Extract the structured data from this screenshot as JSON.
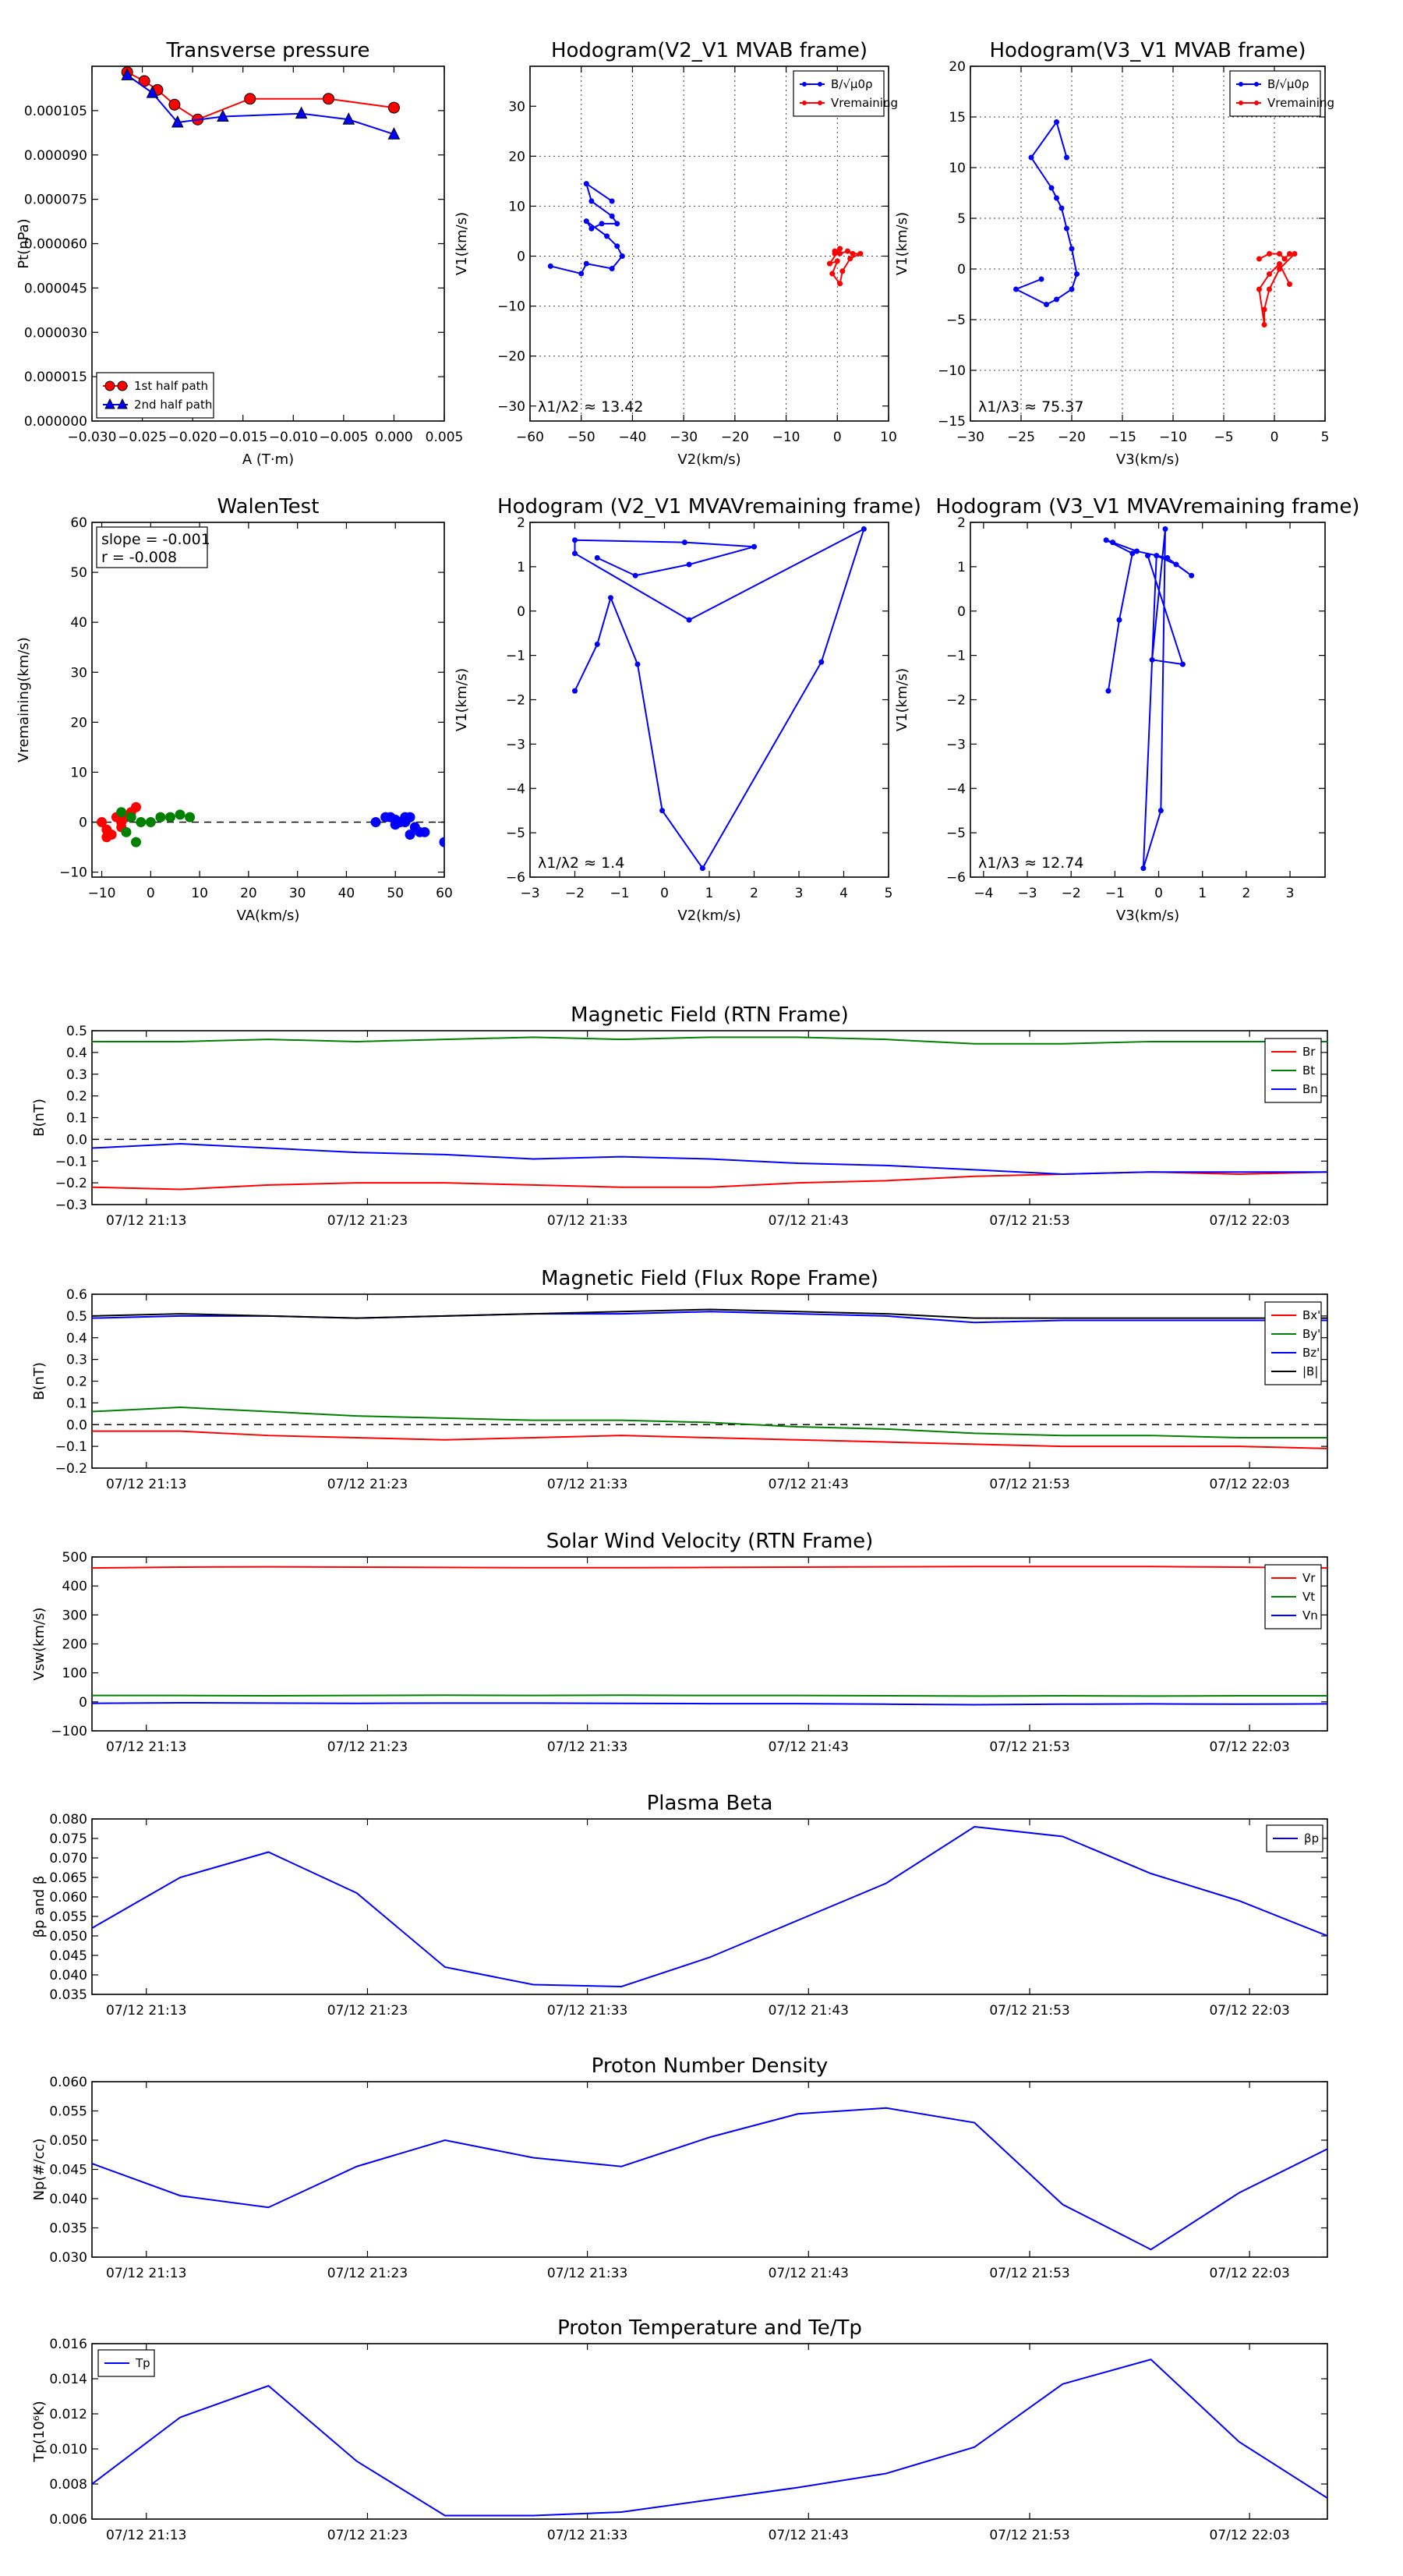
{
  "colors": {
    "red": "#ff0000",
    "green": "#008000",
    "blue": "#0000ff",
    "black": "#000000"
  },
  "chart_data": [
    {
      "id": "transverse_pressure",
      "type": "line",
      "title": "Transverse pressure",
      "xlabel": "A (T·m)",
      "ylabel": "Pt(nPa)",
      "xlim": [
        -0.03,
        0.005
      ],
      "ylim": [
        0,
        0.00012
      ],
      "xticks": [
        "−0.030",
        "−0.025",
        "−0.020",
        "−0.015",
        "−0.010",
        "−0.005",
        "0.000",
        "0.005"
      ],
      "yticks": [
        "0.000000",
        "0.000015",
        "0.000030",
        "0.000045",
        "0.000060",
        "0.000075",
        "0.000090",
        "0.000105"
      ],
      "legend_position": "lower-left",
      "series": [
        {
          "name": "1st half path",
          "color": "#ff0000",
          "marker": "circle",
          "x": [
            -0.0265,
            -0.0248,
            -0.0235,
            -0.0218,
            -0.0195,
            -0.0143,
            -0.0065,
            0.0
          ],
          "y": [
            0.000118,
            0.000115,
            0.000112,
            0.000107,
            0.000102,
            0.000109,
            0.000109,
            0.000106
          ]
        },
        {
          "name": "2nd half path",
          "color": "#0000ff",
          "marker": "triangle",
          "x": [
            -0.0265,
            -0.024,
            -0.0215,
            -0.017,
            -0.0092,
            -0.0045,
            0.0
          ],
          "y": [
            0.000117,
            0.000111,
            0.000101,
            0.000103,
            0.000104,
            0.000102,
            9.7e-05
          ]
        }
      ]
    },
    {
      "id": "hodogram_v2_v1_mvab",
      "type": "line",
      "title": "Hodogram(V2_V1 MVAB frame)",
      "xlabel": "V2(km/s)",
      "ylabel": "V1(km/s)",
      "xlim": [
        -60,
        10
      ],
      "ylim": [
        -33,
        38
      ],
      "grid": true,
      "xticks": [
        "−60",
        "−50",
        "−40",
        "−30",
        "−20",
        "−10",
        "0",
        "10"
      ],
      "yticks": [
        "−30",
        "−20",
        "−10",
        "0",
        "10",
        "20",
        "30"
      ],
      "legend_position": "top-right",
      "annotation": "λ1/λ2 ≈ 13.42",
      "series": [
        {
          "name": "B/√μ0ρ",
          "color": "#0000ff",
          "marker": "dot",
          "x": [
            -44,
            -49,
            -48,
            -44,
            -43,
            -46,
            -48,
            -49,
            -45,
            -43,
            -42,
            -44,
            -49,
            -50,
            -56
          ],
          "y": [
            11,
            14.5,
            11,
            8,
            6.5,
            6.5,
            5.5,
            7,
            4,
            2,
            0,
            -2.5,
            -1.5,
            -3.5,
            -2
          ]
        },
        {
          "name": "Vremaining",
          "color": "#ff0000",
          "marker": "dot",
          "x": [
            -0.5,
            0.5,
            2,
            3,
            4.5,
            2.5,
            1,
            0.5,
            -1,
            0,
            -1.5,
            0.5,
            -0.5
          ],
          "y": [
            1,
            0.5,
            1,
            0.5,
            0.5,
            -0.5,
            -3,
            -5.5,
            -3.5,
            -1,
            -1.5,
            1.5,
            0.5
          ]
        }
      ]
    },
    {
      "id": "hodogram_v3_v1_mvab",
      "type": "line",
      "title": "Hodogram(V3_V1 MVAB frame)",
      "xlabel": "V3(km/s)",
      "ylabel": "V1(km/s)",
      "xlim": [
        -30,
        5
      ],
      "ylim": [
        -15,
        20
      ],
      "grid": true,
      "xticks": [
        "−30",
        "−25",
        "−20",
        "−15",
        "−10",
        "−5",
        "0",
        "5"
      ],
      "yticks": [
        "−15",
        "−10",
        "−5",
        "0",
        "5",
        "10",
        "15",
        "20"
      ],
      "legend_position": "top-right",
      "annotation": "λ1/λ3 ≈ 75.37",
      "series": [
        {
          "name": "B/√μ0ρ",
          "color": "#0000ff",
          "marker": "dot",
          "x": [
            -20.5,
            -21.5,
            -24,
            -22,
            -21.5,
            -21,
            -20.5,
            -20,
            -19.5,
            -20,
            -21.5,
            -22.5,
            -25.5,
            -23
          ],
          "y": [
            11,
            14.5,
            11,
            8,
            7,
            6,
            4,
            2,
            -0.5,
            -2,
            -3,
            -3.5,
            -2,
            -1
          ]
        },
        {
          "name": "Vremaining",
          "color": "#ff0000",
          "marker": "dot",
          "x": [
            -1.5,
            -0.5,
            0.5,
            1,
            1.5,
            2,
            0.5,
            -0.5,
            -1,
            -1,
            -1.5,
            -0.5,
            0.5,
            1.5
          ],
          "y": [
            1,
            1.5,
            1.5,
            1,
            1.5,
            1.5,
            0,
            -2,
            -4,
            -5.5,
            -2,
            -0.5,
            0.5,
            -1.5
          ]
        }
      ]
    },
    {
      "id": "walen_test",
      "type": "scatter",
      "title": "WalenTest",
      "xlabel": "VA(km/s)",
      "ylabel": "Vremaining(km/s)",
      "xlim": [
        -12,
        60
      ],
      "ylim": [
        -11,
        60
      ],
      "xticks": [
        "−10",
        "0",
        "10",
        "20",
        "30",
        "40",
        "50",
        "60"
      ],
      "yticks": [
        "−10",
        "0",
        "10",
        "20",
        "30",
        "40",
        "50",
        "60"
      ],
      "annotation": [
        "slope = -0.001",
        "r = -0.008"
      ],
      "series": [
        {
          "name": "",
          "color": "#ff0000",
          "x": [
            -10,
            -9,
            -8,
            -7,
            -6,
            -5,
            -4,
            -3,
            -6,
            -9
          ],
          "y": [
            0,
            -1.5,
            -2.5,
            1,
            0,
            1,
            2,
            3,
            -1,
            -3
          ]
        },
        {
          "name": "",
          "color": "#008000",
          "x": [
            -6,
            -4,
            -2,
            0,
            2,
            4,
            6,
            8,
            -3,
            -5
          ],
          "y": [
            2,
            1,
            0,
            0,
            1,
            1,
            1.5,
            1,
            -4,
            -2
          ]
        },
        {
          "name": "",
          "color": "#0000ff",
          "x": [
            46,
            48,
            50,
            51,
            52,
            53,
            54,
            55,
            49,
            50,
            52,
            53,
            56,
            60
          ],
          "y": [
            0,
            1,
            0.5,
            0,
            1,
            1,
            -1,
            -2,
            1,
            -0.5,
            0,
            -2.5,
            -2,
            -4
          ]
        }
      ],
      "reference_line": {
        "y": 0,
        "style": "dashed"
      }
    },
    {
      "id": "hodogram_v2_v1_mvav",
      "type": "line",
      "title": "Hodogram (V2_V1 MVAVremaining frame)",
      "xlabel": "V2(km/s)",
      "ylabel": "V1(km/s)",
      "xlim": [
        -3,
        5
      ],
      "ylim": [
        -6,
        2
      ],
      "xticks": [
        "−3",
        "−2",
        "−1",
        "0",
        "1",
        "2",
        "3",
        "4",
        "5"
      ],
      "yticks": [
        "−6",
        "−5",
        "−4",
        "−3",
        "−2",
        "−1",
        "0",
        "1",
        "2"
      ],
      "annotation": "λ1/λ2 ≈ 1.4",
      "series": [
        {
          "name": "",
          "color": "#0000ff",
          "marker": "dot",
          "x": [
            -2,
            -1.5,
            -1.2,
            -0.6,
            -0.05,
            0.85,
            3.5,
            4.45,
            0.55,
            -2,
            -2,
            0.45,
            2,
            0.55,
            -0.65,
            -1.5
          ],
          "y": [
            -1.8,
            -0.75,
            0.3,
            -1.2,
            -4.5,
            -5.8,
            -1.15,
            1.85,
            -0.2,
            1.3,
            1.6,
            1.55,
            1.45,
            1.05,
            0.8,
            1.2
          ]
        }
      ]
    },
    {
      "id": "hodogram_v3_v1_mvav",
      "type": "line",
      "title": "Hodogram (V3_V1 MVAVremaining frame)",
      "xlabel": "V3(km/s)",
      "ylabel": "V1(km/s)",
      "xlim": [
        -4.3,
        3.8
      ],
      "ylim": [
        -6,
        2
      ],
      "xticks": [
        "−4",
        "−3",
        "−2",
        "−1",
        "0",
        "1",
        "2",
        "3"
      ],
      "yticks": [
        "−6",
        "−5",
        "−4",
        "−3",
        "−2",
        "−1",
        "0",
        "1",
        "2"
      ],
      "annotation": "λ1/λ3 ≈ 12.74",
      "series": [
        {
          "name": "",
          "color": "#0000ff",
          "marker": "dot",
          "x": [
            -1.15,
            -0.9,
            -0.6,
            -1.2,
            -1.05,
            -0.5,
            0.2,
            0.75,
            0.4,
            -0.05,
            -0.35,
            0.05,
            0.15,
            -0.15,
            0.55,
            -0.25
          ],
          "y": [
            -1.8,
            -0.2,
            1.3,
            1.6,
            1.55,
            1.35,
            1.2,
            0.8,
            1.05,
            1.25,
            -5.8,
            -4.5,
            1.85,
            -1.1,
            -1.2,
            1.25
          ]
        }
      ]
    },
    {
      "id": "magnetic_field_rtn",
      "type": "line",
      "title": "Magnetic Field (RTN Frame)",
      "ylabel": "B(nT)",
      "ylim": [
        -0.3,
        0.5
      ],
      "yticks": [
        "−0.3",
        "−0.2",
        "−0.1",
        "0.0",
        "0.1",
        "0.2",
        "0.3",
        "0.4",
        "0.5"
      ],
      "x_tick_labels": [
        "07/12 21:13",
        "07/12 21:23",
        "07/12 21:33",
        "07/12 21:43",
        "07/12 21:53",
        "07/12 22:03"
      ],
      "legend_position": "right",
      "reference_line": {
        "y": 0,
        "style": "dashed"
      },
      "series": [
        {
          "name": "Br",
          "color": "#ff0000",
          "values": [
            -0.22,
            -0.23,
            -0.21,
            -0.2,
            -0.2,
            -0.21,
            -0.22,
            -0.22,
            -0.2,
            -0.19,
            -0.17,
            -0.16,
            -0.15,
            -0.16,
            -0.15
          ]
        },
        {
          "name": "Bt",
          "color": "#008000",
          "values": [
            0.45,
            0.45,
            0.46,
            0.45,
            0.46,
            0.47,
            0.46,
            0.47,
            0.47,
            0.46,
            0.44,
            0.44,
            0.45,
            0.45,
            0.45
          ]
        },
        {
          "name": "Bn",
          "color": "#0000ff",
          "values": [
            -0.04,
            -0.02,
            -0.04,
            -0.06,
            -0.07,
            -0.09,
            -0.08,
            -0.09,
            -0.11,
            -0.12,
            -0.14,
            -0.16,
            -0.15,
            -0.15,
            -0.15
          ]
        }
      ]
    },
    {
      "id": "magnetic_field_flux_rope",
      "type": "line",
      "title": "Magnetic Field (Flux Rope Frame)",
      "ylabel": "B(nT)",
      "ylim": [
        -0.2,
        0.6
      ],
      "yticks": [
        "−0.2",
        "−0.1",
        "0.0",
        "0.1",
        "0.2",
        "0.3",
        "0.4",
        "0.5",
        "0.6"
      ],
      "x_tick_labels": [
        "07/12 21:13",
        "07/12 21:23",
        "07/12 21:33",
        "07/12 21:43",
        "07/12 21:53",
        "07/12 22:03"
      ],
      "legend_position": "right",
      "reference_line": {
        "y": 0,
        "style": "dashed"
      },
      "series": [
        {
          "name": "Bx'",
          "color": "#ff0000",
          "values": [
            -0.03,
            -0.03,
            -0.05,
            -0.06,
            -0.07,
            -0.06,
            -0.05,
            -0.06,
            -0.07,
            -0.08,
            -0.09,
            -0.1,
            -0.1,
            -0.1,
            -0.11
          ]
        },
        {
          "name": "By'",
          "color": "#008000",
          "values": [
            0.06,
            0.08,
            0.06,
            0.04,
            0.03,
            0.02,
            0.02,
            0.01,
            -0.01,
            -0.02,
            -0.04,
            -0.05,
            -0.05,
            -0.06,
            -0.06
          ]
        },
        {
          "name": "Bz'",
          "color": "#0000ff",
          "values": [
            0.49,
            0.5,
            0.5,
            0.49,
            0.5,
            0.51,
            0.51,
            0.52,
            0.51,
            0.5,
            0.47,
            0.48,
            0.48,
            0.48,
            0.48
          ]
        },
        {
          "name": "|B|",
          "color": "#000000",
          "values": [
            0.5,
            0.51,
            0.5,
            0.49,
            0.5,
            0.51,
            0.52,
            0.53,
            0.52,
            0.51,
            0.49,
            0.49,
            0.49,
            0.49,
            0.49
          ]
        }
      ]
    },
    {
      "id": "solar_wind_velocity",
      "type": "line",
      "title": "Solar Wind Velocity (RTN Frame)",
      "ylabel": "Vsw(km/s)",
      "ylim": [
        -100,
        500
      ],
      "yticks": [
        "−100",
        "0",
        "100",
        "200",
        "300",
        "400",
        "500"
      ],
      "x_tick_labels": [
        "07/12 21:13",
        "07/12 21:23",
        "07/12 21:33",
        "07/12 21:43",
        "07/12 21:53",
        "07/12 22:03"
      ],
      "legend_position": "right",
      "series": [
        {
          "name": "Vr",
          "color": "#ff0000",
          "values": [
            462,
            465,
            466,
            465,
            464,
            463,
            463,
            464,
            465,
            466,
            467,
            467,
            467,
            465,
            462
          ]
        },
        {
          "name": "Vt",
          "color": "#008000",
          "values": [
            22,
            22,
            21,
            22,
            23,
            22,
            23,
            22,
            22,
            21,
            20,
            21,
            20,
            21,
            21
          ]
        },
        {
          "name": "Vn",
          "color": "#0000ff",
          "values": [
            -5,
            -3,
            -4,
            -5,
            -4,
            -4,
            -5,
            -6,
            -6,
            -8,
            -10,
            -8,
            -7,
            -8,
            -7
          ]
        }
      ]
    },
    {
      "id": "plasma_beta",
      "type": "line",
      "title": "Plasma Beta",
      "ylabel": "βp and β",
      "ylim": [
        0.035,
        0.08
      ],
      "yticks": [
        "0.035",
        "0.040",
        "0.045",
        "0.050",
        "0.055",
        "0.060",
        "0.065",
        "0.070",
        "0.075",
        "0.080"
      ],
      "x_tick_labels": [
        "07/12 21:13",
        "07/12 21:23",
        "07/12 21:33",
        "07/12 21:43",
        "07/12 21:53",
        "07/12 22:03"
      ],
      "legend_position": "top-right",
      "series": [
        {
          "name": "βp",
          "color": "#0000ff",
          "values": [
            0.052,
            0.065,
            0.0715,
            0.061,
            0.042,
            0.0375,
            0.037,
            0.0445,
            0.054,
            0.0635,
            0.078,
            0.0755,
            0.066,
            0.059,
            0.05
          ]
        }
      ]
    },
    {
      "id": "proton_number_density",
      "type": "line",
      "title": "Proton Number Density",
      "ylabel": "Np(#/cc)",
      "ylim": [
        0.03,
        0.06
      ],
      "yticks": [
        "0.030",
        "0.035",
        "0.040",
        "0.045",
        "0.050",
        "0.055",
        "0.060"
      ],
      "x_tick_labels": [
        "07/12 21:13",
        "07/12 21:23",
        "07/12 21:33",
        "07/12 21:43",
        "07/12 21:53",
        "07/12 22:03"
      ],
      "series": [
        {
          "name": "",
          "color": "#0000ff",
          "values": [
            0.046,
            0.0405,
            0.0385,
            0.0455,
            0.05,
            0.047,
            0.0455,
            0.0505,
            0.0545,
            0.0555,
            0.053,
            0.039,
            0.0313,
            0.041,
            0.0485
          ]
        }
      ]
    },
    {
      "id": "proton_temperature",
      "type": "line",
      "title": "Proton Temperature and Te/Tp",
      "ylabel": "Tp(10⁶K)",
      "ylim": [
        0.006,
        0.016
      ],
      "yticks": [
        "0.006",
        "0.008",
        "0.010",
        "0.012",
        "0.014",
        "0.016"
      ],
      "x_tick_labels": [
        "07/12 21:13",
        "07/12 21:23",
        "07/12 21:33",
        "07/12 21:43",
        "07/12 21:53",
        "07/12 22:03"
      ],
      "legend_position": "top-left",
      "series": [
        {
          "name": "Tp",
          "color": "#0000ff",
          "values": [
            0.008,
            0.0118,
            0.0136,
            0.0093,
            0.0062,
            0.0062,
            0.0064,
            0.0071,
            0.0078,
            0.0086,
            0.0101,
            0.0137,
            0.0151,
            0.0104,
            0.0072
          ]
        }
      ]
    }
  ]
}
